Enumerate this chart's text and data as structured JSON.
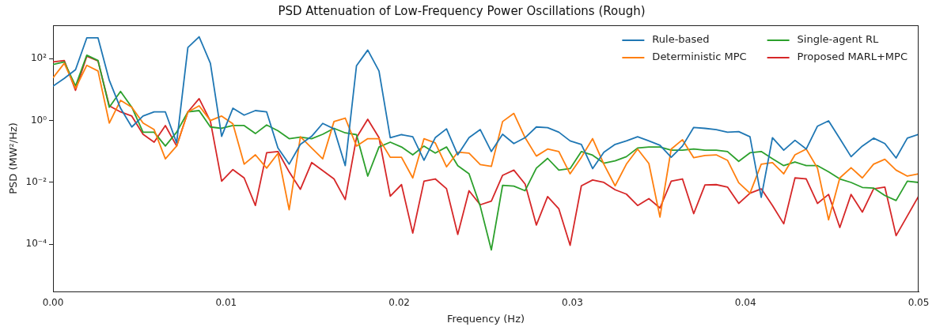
{
  "chart_data": {
    "type": "line",
    "title": "PSD Attenuation of Low-Frequency Power Oscillations (Rough)",
    "xlabel": "Frequency (Hz)",
    "ylabel": "PSD (MW²/Hz)",
    "log": "y",
    "grid": false,
    "legend": "top right",
    "xlim": [
      0,
      0.05
    ],
    "xticks": [
      {
        "value": 0,
        "label": "0.00"
      },
      {
        "value": 0.01,
        "label": "0.01"
      },
      {
        "value": 0.02,
        "label": "0.02"
      },
      {
        "value": 0.03,
        "label": "0.03"
      },
      {
        "value": 0.04,
        "label": "0.04"
      },
      {
        "value": 0.05,
        "label": "0.05"
      }
    ],
    "ylim": [
      3e-06,
      1200
    ],
    "yticks": [
      {
        "value": 0.0001,
        "label": "10⁻⁴"
      },
      {
        "value": 0.01,
        "label": "10⁻²"
      },
      {
        "value": 1,
        "label": "10⁰"
      },
      {
        "value": 100,
        "label": "10²"
      }
    ],
    "x": [
      0,
      0.00065,
      0.0013,
      0.00195,
      0.0026,
      0.00325,
      0.0039,
      0.00455,
      0.0052,
      0.00584,
      0.00649,
      0.00714,
      0.00779,
      0.00844,
      0.00909,
      0.00974,
      0.01039,
      0.01104,
      0.01169,
      0.01234,
      0.01299,
      0.01364,
      0.01429,
      0.01494,
      0.01558,
      0.01623,
      0.01688,
      0.01753,
      0.01818,
      0.01883,
      0.01948,
      0.02013,
      0.02078,
      0.02143,
      0.02208,
      0.02273,
      0.02338,
      0.02403,
      0.02468,
      0.02532,
      0.02597,
      0.02662,
      0.02727,
      0.02792,
      0.02857,
      0.02922,
      0.02987,
      0.03052,
      0.03117,
      0.03182,
      0.03247,
      0.03312,
      0.03377,
      0.03442,
      0.03506,
      0.03571,
      0.03636,
      0.03701,
      0.03766,
      0.03831,
      0.03896,
      0.03961,
      0.04026,
      0.04091,
      0.04156,
      0.04221,
      0.04286,
      0.04351,
      0.04416,
      0.0448,
      0.04545,
      0.0461,
      0.04675,
      0.0474,
      0.04805,
      0.0487,
      0.04935,
      0.05
    ],
    "series": [
      {
        "name": "Rule-based",
        "color": "#1f77b4",
        "values": [
          13,
          23,
          44,
          470,
          470,
          20,
          2.5,
          0.62,
          1.4,
          1.9,
          1.9,
          0.19,
          230,
          510,
          71,
          0.31,
          2.5,
          1.5,
          2.1,
          1.9,
          0.13,
          0.039,
          0.17,
          0.31,
          0.81,
          0.54,
          0.035,
          59,
          190,
          40,
          0.28,
          0.35,
          0.3,
          0.052,
          0.28,
          0.54,
          0.078,
          0.28,
          0.51,
          0.1,
          0.36,
          0.18,
          0.28,
          0.62,
          0.59,
          0.42,
          0.22,
          0.17,
          0.028,
          0.095,
          0.17,
          0.22,
          0.3,
          0.22,
          0.16,
          0.065,
          0.15,
          0.6,
          0.56,
          0.51,
          0.42,
          0.44,
          0.3,
          0.0033,
          0.28,
          0.11,
          0.23,
          0.12,
          0.66,
          0.98,
          0.26,
          0.068,
          0.15,
          0.27,
          0.18,
          0.062,
          0.27,
          0.36
        ]
      },
      {
        "name": "Deterministic MPC",
        "color": "#ff7f0e",
        "values": [
          24,
          71,
          11,
          61,
          40,
          0.83,
          4.5,
          2.7,
          0.83,
          0.51,
          0.058,
          0.15,
          1.9,
          3,
          1,
          1.4,
          0.79,
          0.039,
          0.078,
          0.029,
          0.087,
          0.0013,
          0.3,
          0.13,
          0.058,
          0.93,
          1.2,
          0.15,
          0.26,
          0.26,
          0.065,
          0.065,
          0.014,
          0.26,
          0.19,
          0.032,
          0.095,
          0.089,
          0.038,
          0.033,
          0.93,
          1.7,
          0.28,
          0.071,
          0.12,
          0.1,
          0.019,
          0.065,
          0.26,
          0.039,
          0.0078,
          0.039,
          0.12,
          0.041,
          0.00076,
          0.12,
          0.24,
          0.063,
          0.074,
          0.078,
          0.052,
          0.0098,
          0.0045,
          0.039,
          0.044,
          0.019,
          0.078,
          0.12,
          0.029,
          0.00062,
          0.014,
          0.03,
          0.014,
          0.039,
          0.056,
          0.025,
          0.016,
          0.019
        ]
      },
      {
        "name": "Single-agent RL",
        "color": "#2ca02c",
        "values": [
          65,
          79,
          13,
          130,
          87,
          2.7,
          8.7,
          2.7,
          0.42,
          0.42,
          0.15,
          0.42,
          1.9,
          2.1,
          0.62,
          0.56,
          0.69,
          0.69,
          0.38,
          0.72,
          0.47,
          0.26,
          0.29,
          0.26,
          0.36,
          0.56,
          0.4,
          0.35,
          0.016,
          0.14,
          0.2,
          0.14,
          0.078,
          0.15,
          0.089,
          0.14,
          0.035,
          0.019,
          0.0017,
          6.6e-05,
          0.0081,
          0.0076,
          0.0054,
          0.029,
          0.06,
          0.025,
          0.028,
          0.1,
          0.076,
          0.042,
          0.05,
          0.068,
          0.13,
          0.14,
          0.14,
          0.11,
          0.11,
          0.12,
          0.11,
          0.11,
          0.1,
          0.048,
          0.091,
          0.1,
          0.058,
          0.035,
          0.046,
          0.035,
          0.035,
          0.022,
          0.013,
          0.01,
          0.0069,
          0.0066,
          0.0038,
          0.0026,
          0.011,
          0.01
        ]
      },
      {
        "name": "Proposed MARL+MPC",
        "color": "#d62728",
        "values": [
          79,
          87,
          9.5,
          120,
          84,
          3,
          1.9,
          1.4,
          0.36,
          0.2,
          0.69,
          0.15,
          1.9,
          5.1,
          0.96,
          0.011,
          0.026,
          0.014,
          0.0018,
          0.091,
          0.1,
          0.022,
          0.006,
          0.044,
          0.024,
          0.013,
          0.0028,
          0.28,
          1.1,
          0.28,
          0.0036,
          0.0085,
          0.00023,
          0.011,
          0.013,
          0.0063,
          0.00021,
          0.0054,
          0.0019,
          0.0025,
          0.017,
          0.025,
          0.0089,
          0.00042,
          0.0035,
          0.0014,
          9.3e-05,
          0.0078,
          0.012,
          0.01,
          0.0058,
          0.0042,
          0.0018,
          0.003,
          0.0015,
          0.011,
          0.013,
          0.00098,
          0.0083,
          0.0085,
          0.0071,
          0.0021,
          0.0045,
          0.0062,
          0.0018,
          0.00046,
          0.014,
          0.013,
          0.0021,
          0.0041,
          0.00035,
          0.0041,
          0.0011,
          0.0062,
          0.0071,
          0.00019,
          0.00083,
          0.0036
        ]
      }
    ]
  }
}
